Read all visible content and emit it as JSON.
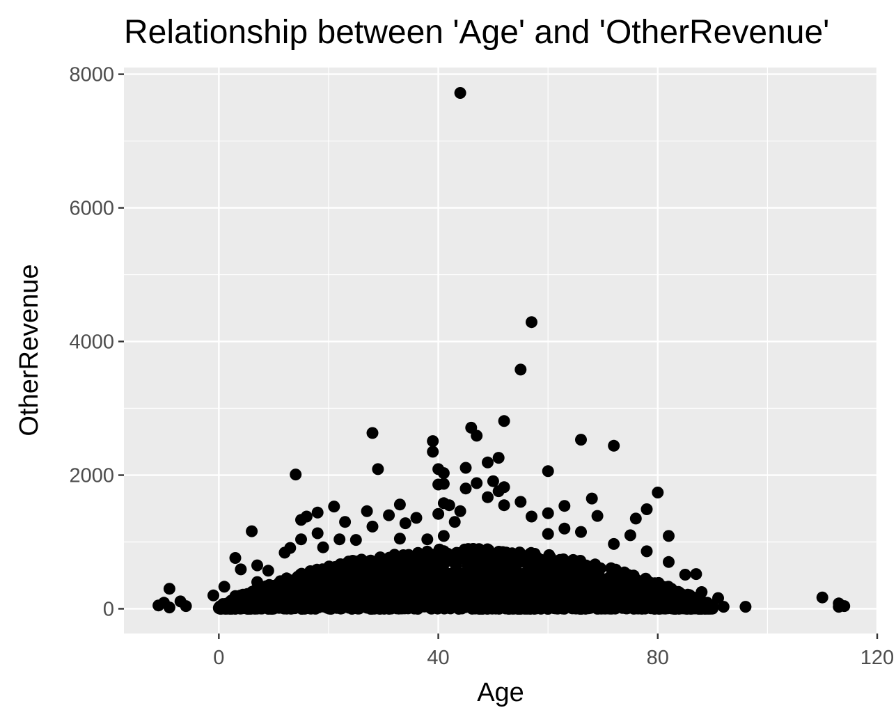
{
  "chart_data": {
    "type": "scatter",
    "title": "Relationship between 'Age' and 'OtherRevenue'",
    "xlabel": "Age",
    "ylabel": "OtherRevenue",
    "xlim": [
      -17.3,
      120
    ],
    "ylim": [
      -370,
      8100
    ],
    "xticks": [
      0,
      40,
      80,
      120
    ],
    "xtick_labels": [
      "0",
      "40",
      "80",
      "120"
    ],
    "yticks": [
      0,
      2000,
      4000,
      6000,
      8000
    ],
    "ytick_labels": [
      "0",
      "2000",
      "4000",
      "6000",
      "8000"
    ],
    "grid": true,
    "legend": "none",
    "colors": {
      "panel": "#ebebeb",
      "grid": "#ffffff",
      "point": "#000000"
    },
    "points": [
      {
        "x": 44,
        "y": 7720
      },
      {
        "x": 57,
        "y": 4290
      },
      {
        "x": 55,
        "y": 3580
      },
      {
        "x": 52,
        "y": 2810
      },
      {
        "x": 46,
        "y": 2710
      },
      {
        "x": 47,
        "y": 2590
      },
      {
        "x": 28,
        "y": 2630
      },
      {
        "x": 66,
        "y": 2530
      },
      {
        "x": 39,
        "y": 2510
      },
      {
        "x": 72,
        "y": 2440
      },
      {
        "x": 39,
        "y": 2350
      },
      {
        "x": 51,
        "y": 2260
      },
      {
        "x": 49,
        "y": 2190
      },
      {
        "x": 45,
        "y": 2110
      },
      {
        "x": 29,
        "y": 2090
      },
      {
        "x": 40,
        "y": 2090
      },
      {
        "x": 60,
        "y": 2060
      },
      {
        "x": 41,
        "y": 2030
      },
      {
        "x": 14,
        "y": 2010
      },
      {
        "x": 50,
        "y": 1910
      },
      {
        "x": 47,
        "y": 1880
      },
      {
        "x": 40,
        "y": 1860
      },
      {
        "x": 41,
        "y": 1870
      },
      {
        "x": 52,
        "y": 1820
      },
      {
        "x": 45,
        "y": 1800
      },
      {
        "x": 51,
        "y": 1760
      },
      {
        "x": 80,
        "y": 1740
      },
      {
        "x": 49,
        "y": 1670
      },
      {
        "x": 68,
        "y": 1650
      },
      {
        "x": 55,
        "y": 1600
      },
      {
        "x": 41,
        "y": 1580
      },
      {
        "x": 33,
        "y": 1560
      },
      {
        "x": 52,
        "y": 1550
      },
      {
        "x": 63,
        "y": 1540
      },
      {
        "x": 42,
        "y": 1550
      },
      {
        "x": 21,
        "y": 1530
      },
      {
        "x": 78,
        "y": 1490
      },
      {
        "x": 27,
        "y": 1460
      },
      {
        "x": 18,
        "y": 1440
      },
      {
        "x": 60,
        "y": 1430
      },
      {
        "x": 44,
        "y": 1460
      },
      {
        "x": 40,
        "y": 1420
      },
      {
        "x": 31,
        "y": 1400
      },
      {
        "x": 16,
        "y": 1380
      },
      {
        "x": 57,
        "y": 1380
      },
      {
        "x": 69,
        "y": 1390
      },
      {
        "x": 76,
        "y": 1350
      },
      {
        "x": 36,
        "y": 1360
      },
      {
        "x": 15,
        "y": 1330
      },
      {
        "x": 34,
        "y": 1280
      },
      {
        "x": 23,
        "y": 1300
      },
      {
        "x": 43,
        "y": 1300
      },
      {
        "x": 28,
        "y": 1230
      },
      {
        "x": 63,
        "y": 1200
      },
      {
        "x": 6,
        "y": 1160
      },
      {
        "x": 18,
        "y": 1130
      },
      {
        "x": 66,
        "y": 1150
      },
      {
        "x": 60,
        "y": 1120
      },
      {
        "x": 75,
        "y": 1100
      },
      {
        "x": 82,
        "y": 1090
      },
      {
        "x": 41,
        "y": 1090
      },
      {
        "x": 15,
        "y": 1040
      },
      {
        "x": 22,
        "y": 1040
      },
      {
        "x": 25,
        "y": 1030
      },
      {
        "x": 33,
        "y": 1050
      },
      {
        "x": 38,
        "y": 1040
      },
      {
        "x": 72,
        "y": 970
      },
      {
        "x": 19,
        "y": 920
      },
      {
        "x": 13,
        "y": 910
      },
      {
        "x": 78,
        "y": 860
      },
      {
        "x": 12,
        "y": 840
      },
      {
        "x": 3,
        "y": 760
      },
      {
        "x": 82,
        "y": 700
      },
      {
        "x": 7,
        "y": 650
      },
      {
        "x": 4,
        "y": 590
      },
      {
        "x": 9,
        "y": 570
      },
      {
        "x": 87,
        "y": 520
      },
      {
        "x": 85,
        "y": 510
      },
      {
        "x": 7,
        "y": 400
      },
      {
        "x": 1,
        "y": 330
      },
      {
        "x": -9,
        "y": 300
      },
      {
        "x": 88,
        "y": 250
      },
      {
        "x": -1,
        "y": 200
      },
      {
        "x": 3,
        "y": 190
      },
      {
        "x": 91,
        "y": 160
      },
      {
        "x": 110,
        "y": 170
      },
      {
        "x": -7,
        "y": 110
      },
      {
        "x": -10,
        "y": 90
      },
      {
        "x": 113,
        "y": 80
      },
      {
        "x": -11,
        "y": 50
      },
      {
        "x": -6,
        "y": 40
      },
      {
        "x": 114,
        "y": 40
      },
      {
        "x": 96,
        "y": 30
      },
      {
        "x": 92,
        "y": 30
      },
      {
        "x": -9,
        "y": 20
      },
      {
        "x": 113,
        "y": 30
      },
      {
        "x": 90,
        "y": 20
      },
      {
        "x": 0,
        "y": 10
      }
    ],
    "dense_cloud": {
      "x_range": [
        0,
        90
      ],
      "peak_x": 45,
      "y_min": 0,
      "y_max_at_peak": 900,
      "y_max_at_edges": 60,
      "approx_points": 2400
    }
  }
}
